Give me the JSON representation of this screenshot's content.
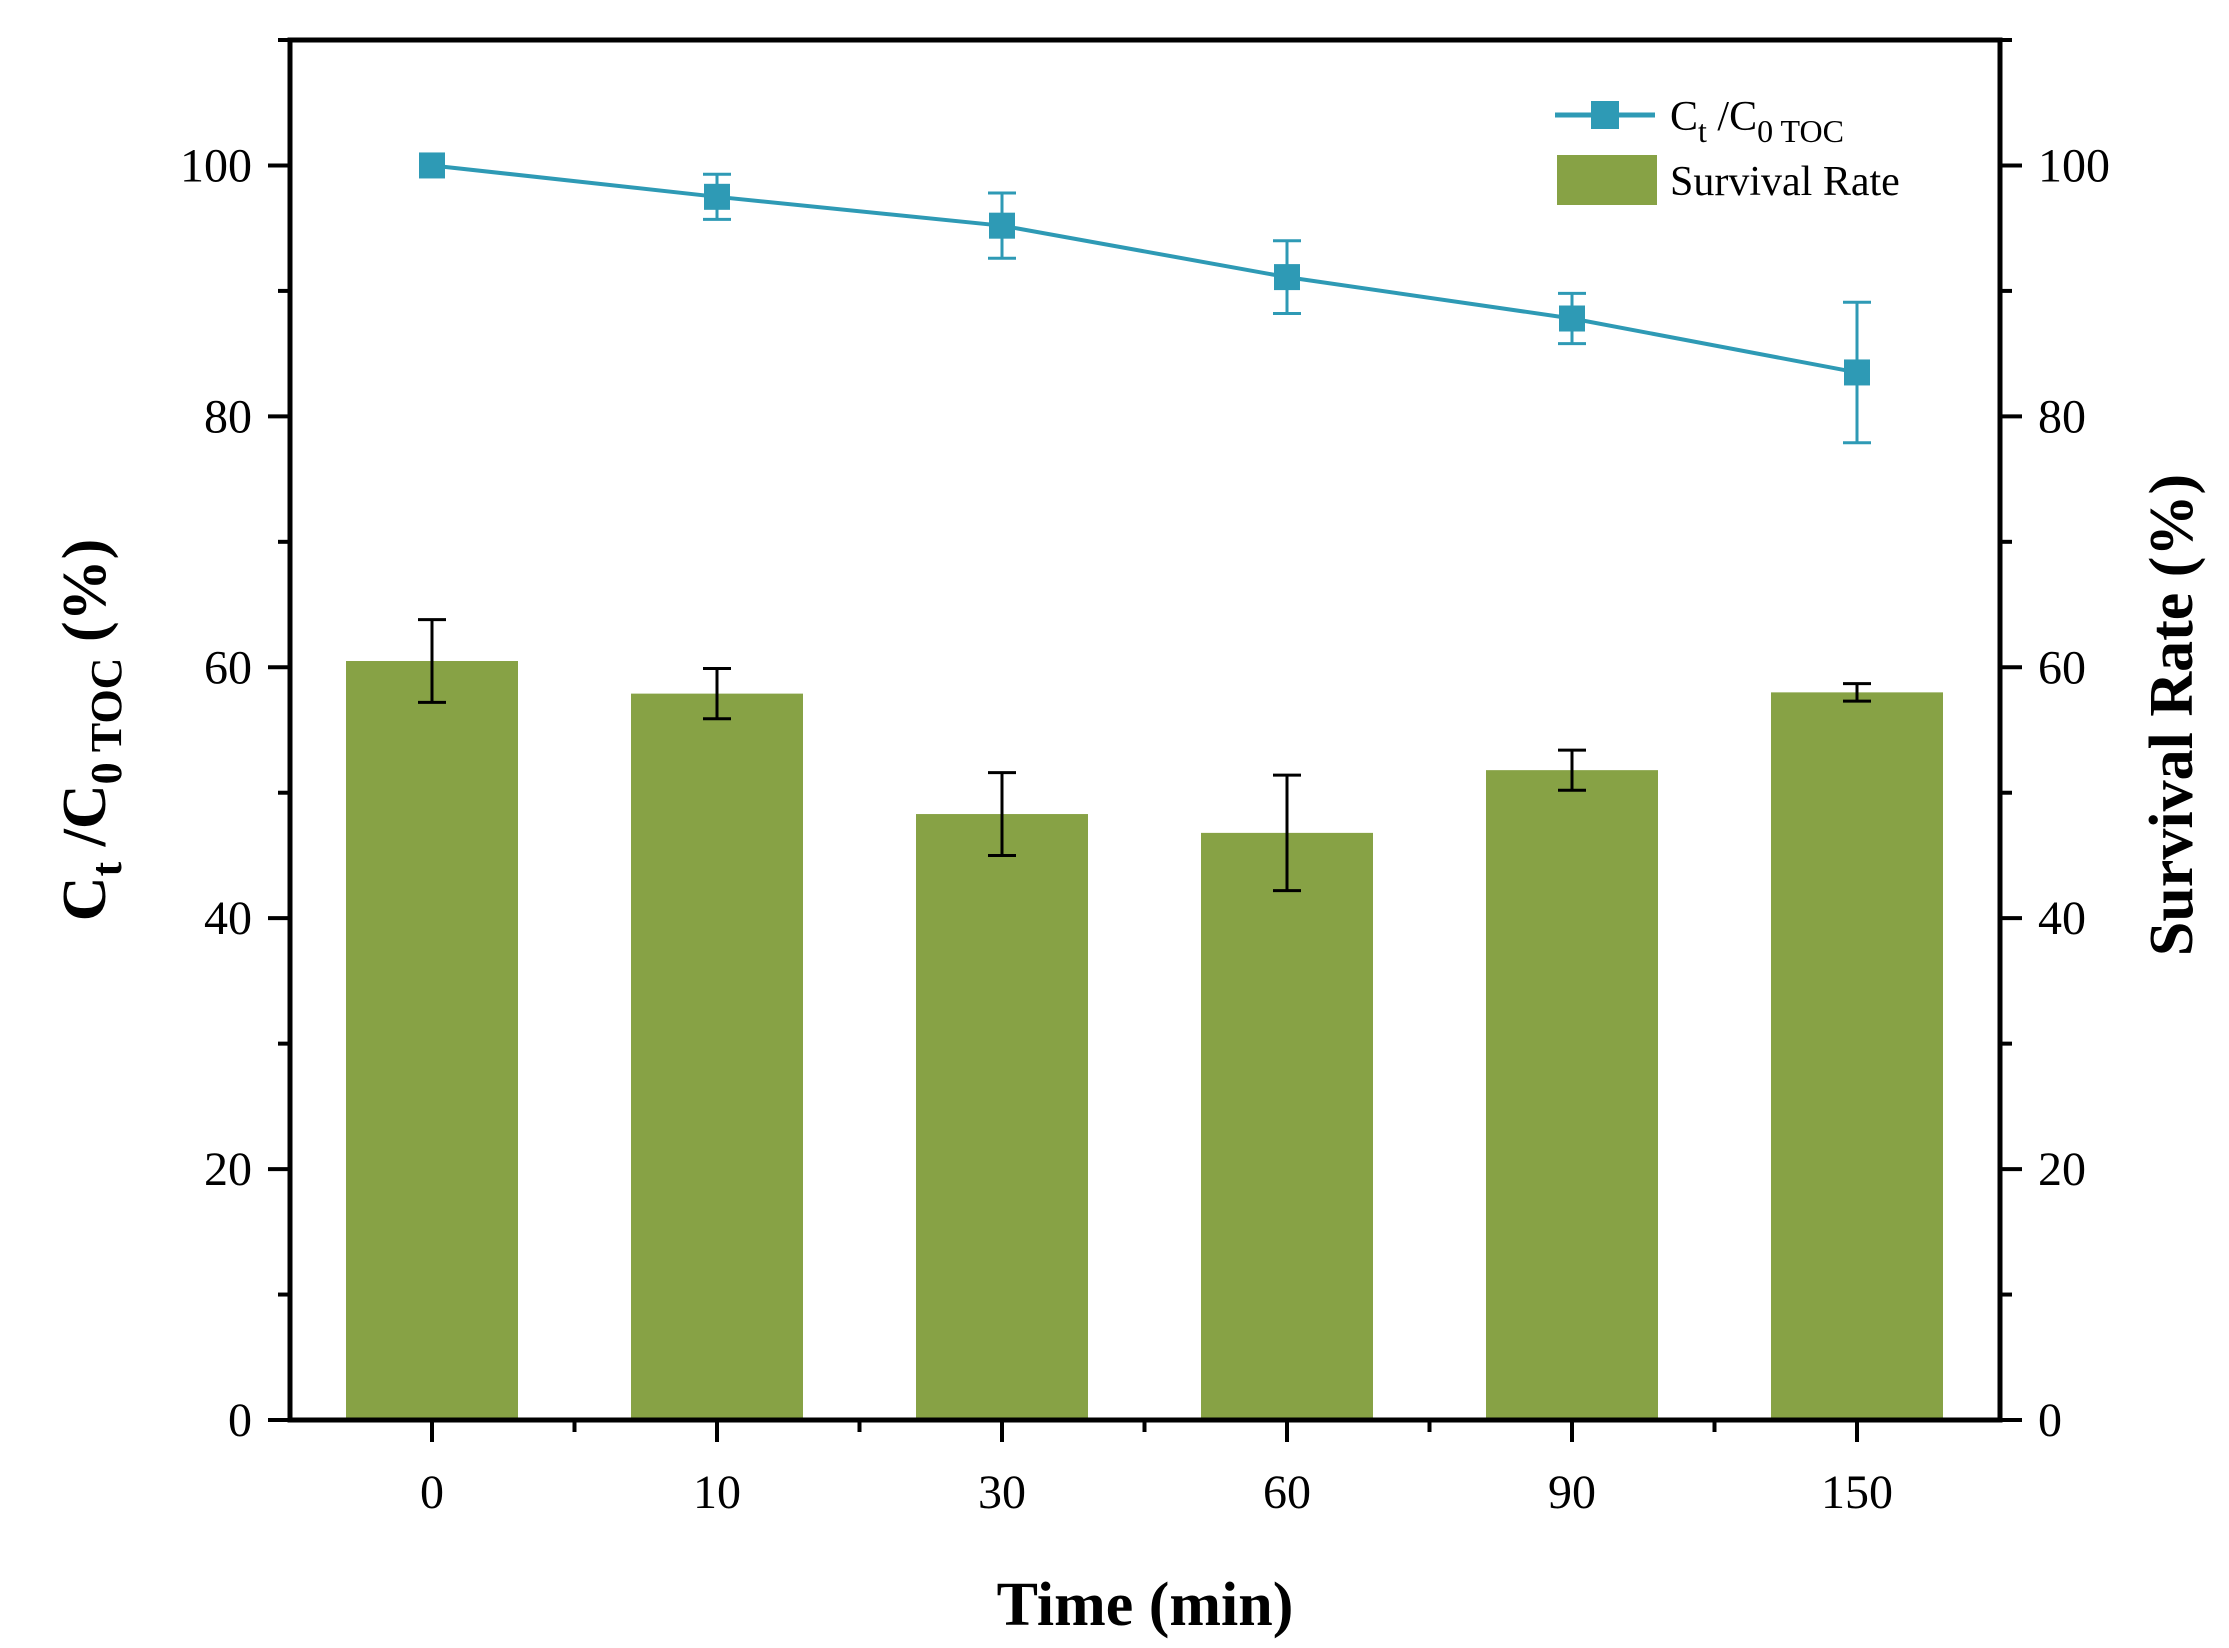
{
  "colors": {
    "bar": "#87a245",
    "line": "#2e9ab5",
    "axis": "#000000",
    "errorbar_bar": "#000000"
  },
  "chart_data": {
    "type": "bar",
    "title": "",
    "categories": [
      "0",
      "10",
      "30",
      "60",
      "90",
      "150"
    ],
    "xlabel": "Time (min)",
    "ylabel": {
      "main": "C",
      "sub1": "t",
      "mid": " /C",
      "sub2": "0 TOC",
      "tail": " (%)"
    },
    "ylabel_right": "Survival Rate (%)",
    "ylim": [
      0,
      110
    ],
    "yticks": [
      "0",
      "20",
      "40",
      "60",
      "80",
      "100"
    ],
    "ytick_values": [
      0,
      20,
      40,
      60,
      80,
      100
    ],
    "series": [
      {
        "name": "Survival Rate",
        "kind": "bar",
        "axis": "right",
        "values": [
          60.5,
          57.9,
          48.3,
          46.8,
          51.8,
          58.0
        ],
        "errors": [
          3.3,
          2.0,
          3.3,
          4.6,
          1.6,
          0.7
        ]
      },
      {
        "name": "Ct/C0 TOC",
        "kind": "line",
        "marker": "square",
        "axis": "left",
        "values": [
          100.0,
          97.5,
          95.2,
          91.1,
          87.8,
          83.5
        ],
        "errors": [
          0.0,
          1.8,
          2.6,
          2.9,
          2.0,
          5.6
        ]
      }
    ],
    "legend": {
      "position": "top-right",
      "line_label": {
        "main": "C",
        "sub1": "t",
        "mid": " /C",
        "sub2": "0 TOC"
      },
      "bar_label": "Survival Rate"
    }
  }
}
